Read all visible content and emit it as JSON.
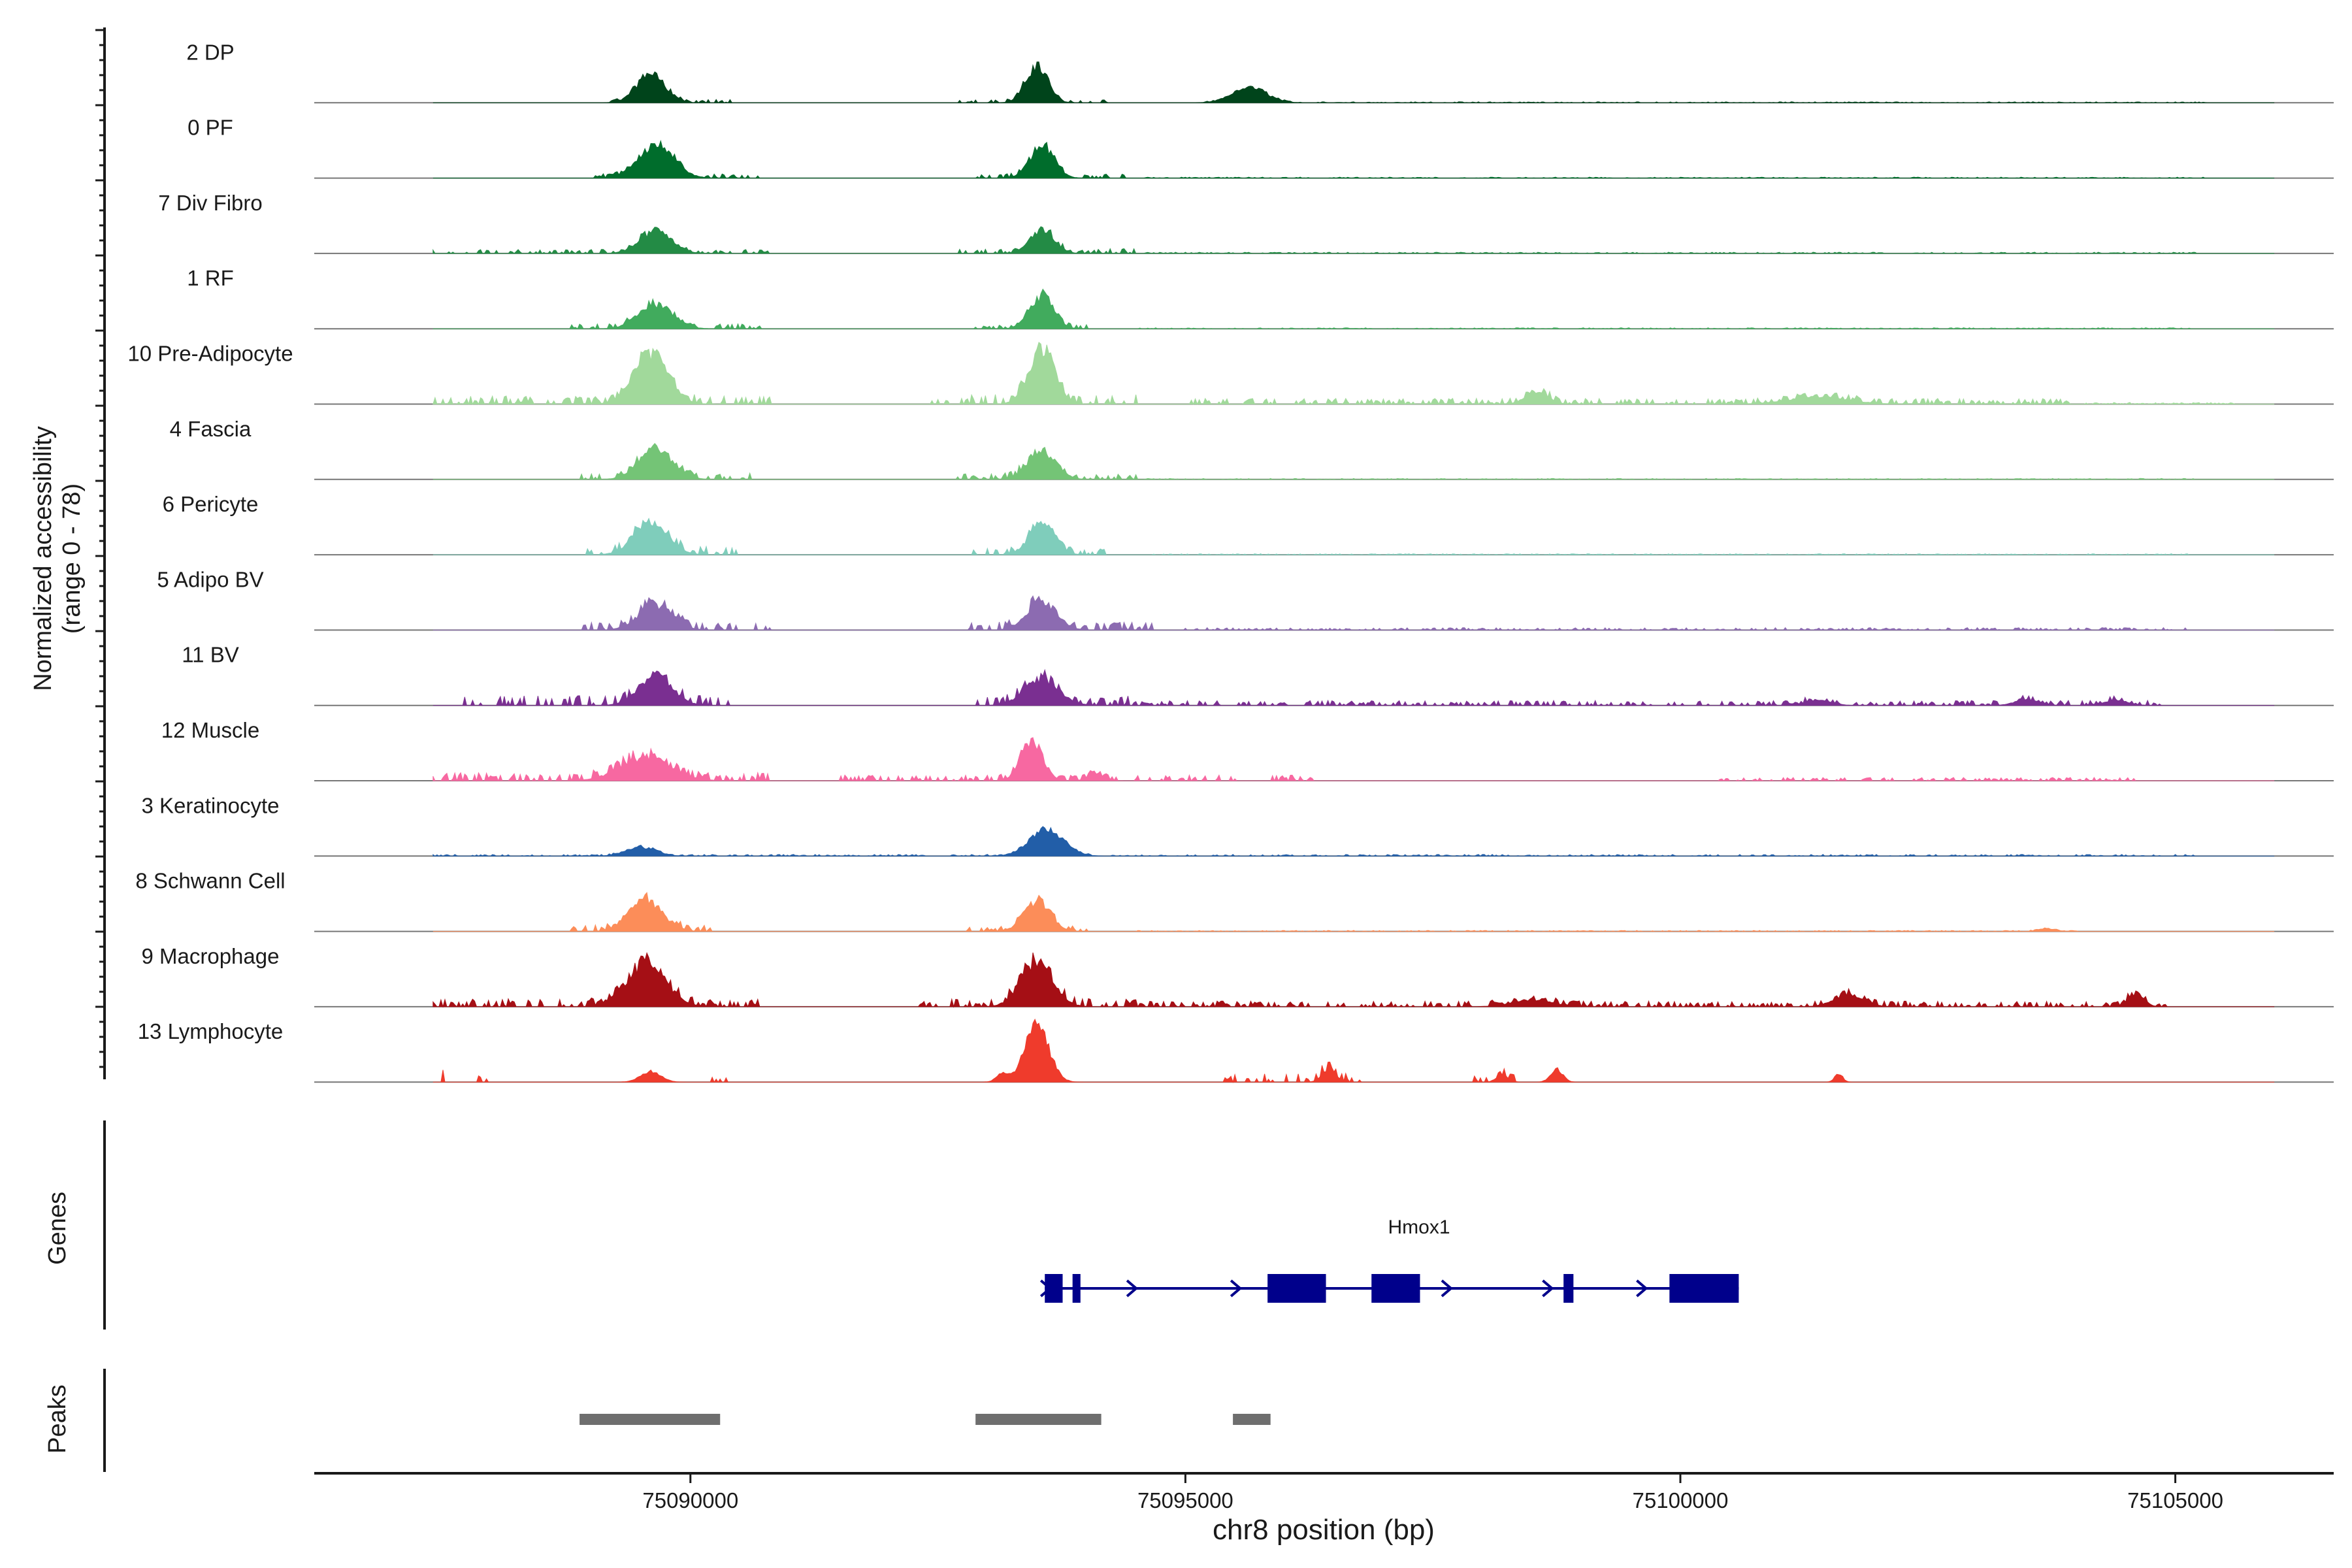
{
  "chart_data": {
    "type": "area",
    "title": "",
    "ylabel_line1": "Normalized accessibility",
    "ylabel_line2": "(range 0 - 78)",
    "ylim": [
      0,
      78
    ],
    "xlabel": "chr8 position (bp)",
    "xlim": [
      75086200,
      75106600
    ],
    "xticks": [
      75090000,
      75095000,
      75100000,
      75105000
    ],
    "xtick_labels": [
      "75090000",
      "75095000",
      "75100000",
      "75105000"
    ],
    "tracks": [
      {
        "name": "2 DP",
        "color": "#00441b",
        "peaks": [
          [
            75089600,
            0.5,
            140
          ],
          [
            75093500,
            0.62,
            110
          ],
          [
            75095650,
            0.26,
            170
          ]
        ],
        "noise": [
          [
            75089200,
            75090400,
            0.04
          ],
          [
            75092700,
            75094200,
            0.04
          ],
          [
            75095200,
            75105300,
            0.012
          ]
        ]
      },
      {
        "name": "0 PF",
        "color": "#006d2c",
        "peaks": [
          [
            75089650,
            0.55,
            180
          ],
          [
            75093550,
            0.55,
            120
          ]
        ],
        "noise": [
          [
            75089000,
            75090700,
            0.05
          ],
          [
            75092900,
            75094400,
            0.05
          ],
          [
            75094600,
            75105300,
            0.012
          ]
        ]
      },
      {
        "name": "7 Div Fibro",
        "color": "#238b45",
        "peaks": [
          [
            75089650,
            0.38,
            160
          ],
          [
            75093550,
            0.4,
            120
          ]
        ],
        "noise": [
          [
            75087200,
            75090800,
            0.05
          ],
          [
            75092600,
            75094500,
            0.06
          ],
          [
            75094600,
            75105200,
            0.015
          ]
        ]
      },
      {
        "name": "1 RF",
        "color": "#41ab5d",
        "peaks": [
          [
            75089650,
            0.42,
            170
          ],
          [
            75093550,
            0.55,
            120
          ]
        ],
        "noise": [
          [
            75088800,
            75090700,
            0.06
          ],
          [
            75092800,
            75094000,
            0.05
          ],
          [
            75094500,
            75105200,
            0.012
          ]
        ]
      },
      {
        "name": "10 Pre-Adipocyte",
        "color": "#a1d99b",
        "peaks": [
          [
            75089600,
            0.88,
            170
          ],
          [
            75093550,
            0.95,
            130
          ],
          [
            75098550,
            0.22,
            110
          ],
          [
            75101400,
            0.12,
            300
          ]
        ],
        "noise": [
          [
            75087000,
            75090800,
            0.1
          ],
          [
            75092400,
            75094500,
            0.12
          ],
          [
            75095000,
            75104100,
            0.07
          ],
          [
            75104100,
            75105600,
            0.02
          ]
        ]
      },
      {
        "name": "4 Fascia",
        "color": "#74c476",
        "peaks": [
          [
            75089650,
            0.52,
            170
          ],
          [
            75093550,
            0.48,
            140
          ]
        ],
        "noise": [
          [
            75088900,
            75090600,
            0.08
          ],
          [
            75092700,
            75094500,
            0.07
          ],
          [
            75094600,
            75105200,
            0.012
          ]
        ]
      },
      {
        "name": "6 Pericyte",
        "color": "#7fcdbb",
        "peaks": [
          [
            75089600,
            0.52,
            170
          ],
          [
            75093550,
            0.52,
            130
          ]
        ],
        "noise": [
          [
            75088900,
            75090600,
            0.1
          ],
          [
            75092800,
            75094200,
            0.08
          ],
          [
            75094600,
            75105200,
            0.012
          ]
        ]
      },
      {
        "name": "5 Adipo BV",
        "color": "#8c6bb1",
        "peaks": [
          [
            75089650,
            0.42,
            170
          ],
          [
            75093550,
            0.48,
            150
          ]
        ],
        "noise": [
          [
            75088900,
            75090800,
            0.1
          ],
          [
            75092800,
            75094700,
            0.1
          ],
          [
            75095000,
            75105200,
            0.03
          ]
        ]
      },
      {
        "name": "11 BV",
        "color": "#7a2f91",
        "peaks": [
          [
            75089650,
            0.48,
            170
          ],
          [
            75093550,
            0.45,
            170
          ],
          [
            75101400,
            0.1,
            120
          ],
          [
            75103500,
            0.1,
            120
          ],
          [
            75104400,
            0.09,
            120
          ]
        ],
        "noise": [
          [
            75087700,
            75090400,
            0.12
          ],
          [
            75092900,
            75094500,
            0.12
          ],
          [
            75094500,
            75104900,
            0.06
          ]
        ]
      },
      {
        "name": "12 Muscle",
        "color": "#f768a1",
        "peaks": [
          [
            75089550,
            0.4,
            250
          ],
          [
            75093450,
            0.66,
            110
          ],
          [
            75094100,
            0.12,
            80
          ]
        ],
        "noise": [
          [
            75086900,
            75090800,
            0.1
          ],
          [
            75091500,
            75095500,
            0.07
          ],
          [
            75095800,
            75096300,
            0.07
          ],
          [
            75100300,
            75104600,
            0.04
          ]
        ]
      },
      {
        "name": "3 Keratinocyte",
        "color": "#225ea8",
        "peaks": [
          [
            75089500,
            0.15,
            150
          ],
          [
            75093600,
            0.45,
            170
          ]
        ],
        "noise": [
          [
            75086800,
            75105200,
            0.02
          ]
        ]
      },
      {
        "name": "8 Schwann Cell",
        "color": "#fc8d59",
        "peaks": [
          [
            75089550,
            0.52,
            170
          ],
          [
            75093500,
            0.52,
            130
          ],
          [
            75103700,
            0.05,
            80
          ]
        ],
        "noise": [
          [
            75088800,
            75090200,
            0.08
          ],
          [
            75092800,
            75094000,
            0.06
          ],
          [
            75094500,
            75104000,
            0.012
          ]
        ]
      },
      {
        "name": "9 Macrophage",
        "color": "#a50f15",
        "peaks": [
          [
            75089550,
            0.72,
            200
          ],
          [
            75093500,
            0.78,
            160
          ],
          [
            75098500,
            0.12,
            200
          ],
          [
            75101700,
            0.2,
            150
          ],
          [
            75104600,
            0.22,
            80
          ]
        ],
        "noise": [
          [
            75087000,
            75090700,
            0.1
          ],
          [
            75092300,
            75094600,
            0.1
          ],
          [
            75094600,
            75105000,
            0.07
          ]
        ]
      },
      {
        "name": "13 Lymphocyte",
        "color": "#ef3b2c",
        "peaks": [
          [
            75089600,
            0.18,
            100
          ],
          [
            75093500,
            1.0,
            120
          ],
          [
            75093150,
            0.14,
            60
          ],
          [
            75096450,
            0.22,
            70
          ],
          [
            75098750,
            0.22,
            60
          ],
          [
            75098200,
            0.12,
            60
          ],
          [
            75101600,
            0.14,
            40
          ]
        ],
        "noise": [
          [
            75087450,
            75087600,
            0.15
          ],
          [
            75087850,
            75087950,
            0.12
          ],
          [
            75090200,
            75090400,
            0.1
          ],
          [
            75095400,
            75096900,
            0.1
          ],
          [
            75097900,
            75098400,
            0.08
          ]
        ]
      }
    ],
    "genes": {
      "label": "Genes",
      "color": "#00008b",
      "gene_name": "Hmox1",
      "start": 75093580,
      "end": 75100590,
      "strand": "+",
      "exons": [
        [
          75093580,
          75093760
        ],
        [
          75093860,
          75093940
        ],
        [
          75095830,
          75096420
        ],
        [
          75096880,
          75097370
        ],
        [
          75098820,
          75098920
        ],
        [
          75099890,
          75100590
        ]
      ],
      "arrows": [
        75093580,
        75094450,
        75095500,
        75097630,
        75098650,
        75099600
      ]
    },
    "peaks_track": {
      "label": "Peaks",
      "color": "#6e6e6e",
      "regions": [
        [
          75088880,
          75090300
        ],
        [
          75092880,
          75094150
        ],
        [
          75095480,
          75095860
        ]
      ]
    }
  }
}
